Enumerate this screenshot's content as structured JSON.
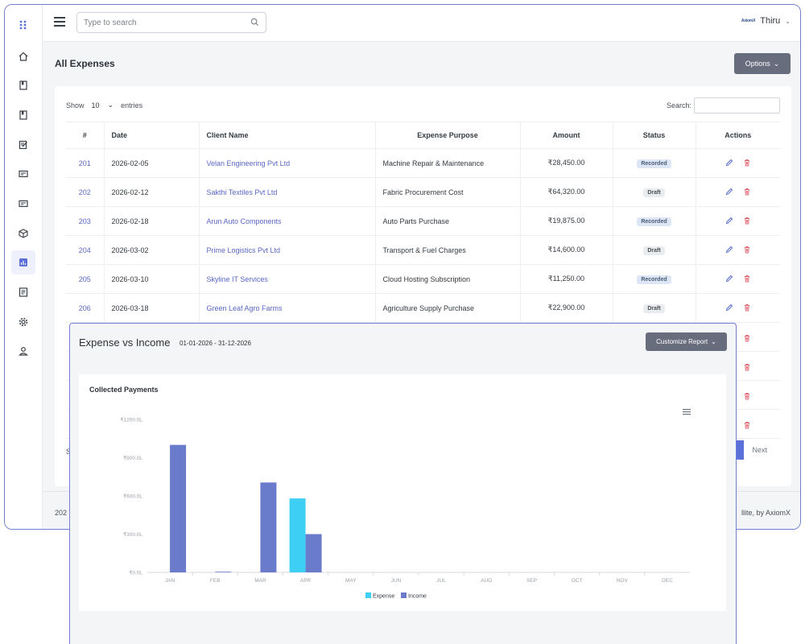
{
  "topbar": {
    "search_placeholder": "Type to search",
    "user_logo_text": "AxiomX",
    "user_name": "Thiru"
  },
  "sidebar": {
    "items": [
      {
        "icon": "apps-grid-icon"
      },
      {
        "icon": "home-icon"
      },
      {
        "icon": "book-icon"
      },
      {
        "icon": "bookmark-icon"
      },
      {
        "icon": "edit-document-icon"
      },
      {
        "icon": "card-icon"
      },
      {
        "icon": "invoice-icon"
      },
      {
        "icon": "cube-icon"
      },
      {
        "icon": "bar-chart-icon",
        "active": true
      },
      {
        "icon": "report-icon"
      },
      {
        "icon": "gear-icon"
      },
      {
        "icon": "user-icon"
      }
    ]
  },
  "page": {
    "title": "All Expenses",
    "options_label": "Options"
  },
  "table_controls": {
    "show_label": "Show",
    "entries_value": "10",
    "entries_label": "entries",
    "search_label": "Search:"
  },
  "table": {
    "headers": [
      "#",
      "Date",
      "Client Name",
      "Expense Purpose",
      "Amount",
      "Status",
      "Actions"
    ],
    "rows": [
      {
        "id": "201",
        "date": "2026-02-05",
        "client": "Velan Engineering Pvt Ltd",
        "purpose": "Machine Repair & Maintenance",
        "amount": "₹28,450.00",
        "status": "Recorded"
      },
      {
        "id": "202",
        "date": "2026-02-12",
        "client": "Sakthi Textiles Pvt Ltd",
        "purpose": "Fabric Procurement Cost",
        "amount": "₹64,320.00",
        "status": "Draft"
      },
      {
        "id": "203",
        "date": "2026-02-18",
        "client": "Arun Auto Components",
        "purpose": "Auto Parts Purchase",
        "amount": "₹19,875.00",
        "status": "Recorded"
      },
      {
        "id": "204",
        "date": "2026-03-02",
        "client": "Prime Logistics Pvt Ltd",
        "purpose": "Transport & Fuel Charges",
        "amount": "₹14,600.00",
        "status": "Draft"
      },
      {
        "id": "205",
        "date": "2026-03-10",
        "client": "Skyline IT Services",
        "purpose": "Cloud Hosting Subscription",
        "amount": "₹11,250.00",
        "status": "Recorded"
      },
      {
        "id": "206",
        "date": "2026-03-18",
        "client": "Green Leaf Agro Farms",
        "purpose": "Agriculture Supply Purchase",
        "amount": "₹22,900.00",
        "status": "Draft"
      }
    ]
  },
  "pagination": {
    "info_partial": "S",
    "current_page": "1",
    "next_label": "Next"
  },
  "footer": {
    "left_partial": "202",
    "right_partial": "llite, by AxiomX"
  },
  "report": {
    "title": "Expense vs Income",
    "date_range": "01-01-2026 - 31-12-2026",
    "customize_label": "Customize Report"
  },
  "chart_data": {
    "type": "bar",
    "title": "Collected Payments",
    "categories": [
      "JAN",
      "FEB",
      "MAR",
      "APR",
      "MAY",
      "JUN",
      "JUL",
      "AUG",
      "SEP",
      "OCT",
      "NOV",
      "DEC"
    ],
    "series": [
      {
        "name": "Expense",
        "color": "#3ecff5",
        "values": [
          0,
          0,
          0,
          580,
          0,
          0,
          0,
          0,
          0,
          0,
          0,
          0
        ]
      },
      {
        "name": "Income",
        "color": "#6a7bcb",
        "values": [
          1000,
          5,
          705,
          300,
          0,
          0,
          0,
          0,
          0,
          0,
          0,
          0
        ]
      }
    ],
    "yticks": [
      "₹0.0L",
      "₹300.0L",
      "₹600.0L",
      "₹900.0L",
      "₹1200.0L"
    ],
    "ylim": [
      0,
      1200
    ],
    "legend": "bottom-center",
    "grid": false
  }
}
